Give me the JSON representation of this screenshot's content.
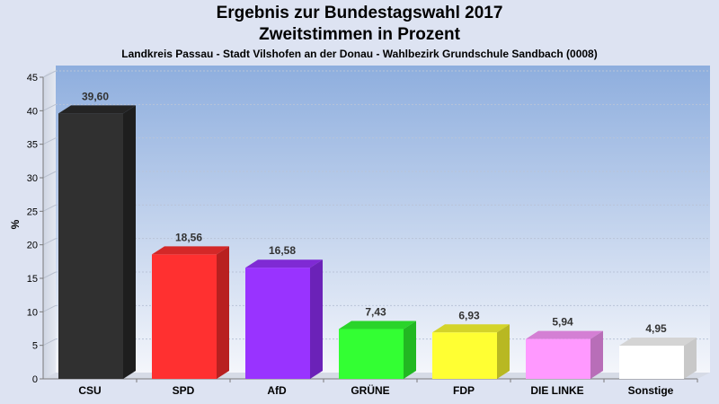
{
  "chart_data": {
    "type": "bar",
    "title_lines": [
      "Ergebnis zur Bundestagswahl 2017",
      "Zweitstimmen in Prozent"
    ],
    "subtitle": "Landkreis Passau - Stadt Vilshofen an der Donau - Wahlbezirk  Grundschule Sandbach (0008)",
    "ylabel": "%",
    "xlabel": "",
    "ylim": [
      0,
      45
    ],
    "yticks": [
      0,
      5,
      10,
      15,
      20,
      25,
      30,
      35,
      40,
      45
    ],
    "grid": true,
    "categories": [
      "CSU",
      "SPD",
      "AfD",
      "GRÜNE",
      "FDP",
      "DIE LINKE",
      "Sonstige"
    ],
    "values": [
      39.6,
      18.56,
      16.58,
      7.43,
      6.93,
      5.94,
      4.95
    ],
    "value_labels": [
      "39,60",
      "18,56",
      "16,58",
      "7,43",
      "6,93",
      "5,94",
      "4,95"
    ],
    "colors": [
      "#303030",
      "#ff3030",
      "#9933ff",
      "#33ff33",
      "#ffff33",
      "#ff99ff",
      "#ffffff"
    ],
    "side_colors": [
      "#1e1e1e",
      "#b82020",
      "#6b22b8",
      "#22b822",
      "#b8b822",
      "#b86eb8",
      "#c8c8c8"
    ],
    "top_colors": [
      "#242424",
      "#d42828",
      "#7f2ad4",
      "#2ad42a",
      "#d4d42a",
      "#d47fd4",
      "#d4d4d4"
    ]
  }
}
